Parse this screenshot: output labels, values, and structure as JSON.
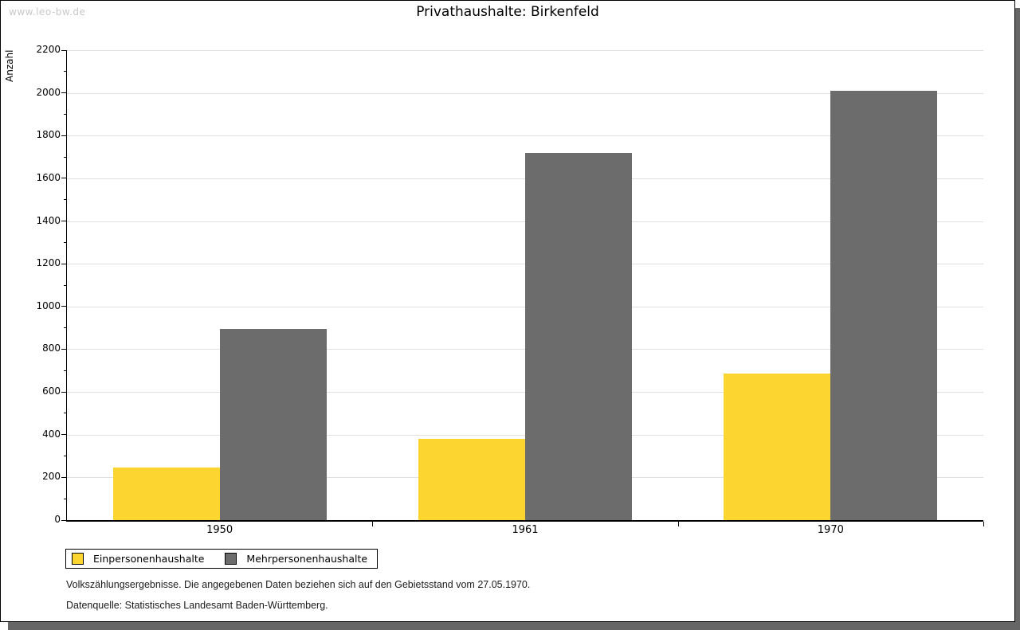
{
  "watermark": "www.leo-bw.de",
  "title": "Privathaushalte: Birkenfeld",
  "chart_data": {
    "type": "bar",
    "title": "Privathaushalte: Birkenfeld",
    "categories": [
      "1950",
      "1961",
      "1970"
    ],
    "series": [
      {
        "name": "Einpersonenhaushalte",
        "color": "#FCD530",
        "values": [
          245,
          380,
          685
        ]
      },
      {
        "name": "Mehrpersonenhaushalte",
        "color": "#6C6C6C",
        "values": [
          895,
          1720,
          2010
        ]
      }
    ],
    "xlabel": "",
    "ylabel": "Anzahl",
    "ylim": [
      0,
      2200
    ],
    "yticks": [
      0,
      200,
      400,
      600,
      800,
      1000,
      1200,
      1400,
      1600,
      1800,
      2000,
      2200
    ],
    "yminor_step": 100,
    "grid": true,
    "gridline_color": "#e0e0e0",
    "legend_position": "bottom-left"
  },
  "footnotes": {
    "line1": "Volkszählungsergebnisse. Die angegebenen Daten beziehen sich auf den Gebietsstand vom 27.05.1970.",
    "line2": "Datenquelle: Statistisches Landesamt Baden-Württemberg."
  },
  "frame": {
    "shadow_color": "#666666",
    "border_color": "#000000",
    "background": "#ffffff"
  }
}
